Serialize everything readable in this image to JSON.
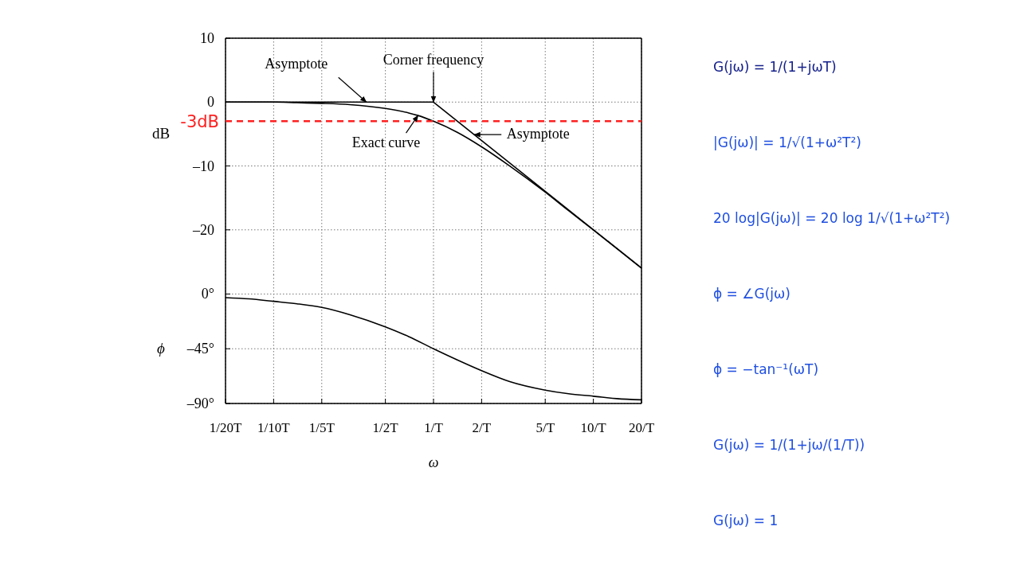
{
  "chart_data": [
    {
      "type": "line",
      "ylabel": "dB",
      "log": "x",
      "tick_labels": "y",
      "xlim": [
        0.05,
        20
      ],
      "xticks": [
        0.05,
        0.1,
        0.2,
        0.5,
        1,
        2,
        5,
        10,
        20
      ],
      "ylim": [
        -27,
        10
      ],
      "yticks": [
        10,
        0,
        {
          "value": -10,
          "label": "–10"
        },
        {
          "value": -20,
          "label": "–20"
        }
      ],
      "grid": true,
      "series": [
        {
          "color": "#000000",
          "x": [
            0.05,
            1,
            20
          ],
          "values": [
            0,
            0,
            -26
          ]
        },
        {
          "color": "#000000",
          "x": [
            0.05,
            0.1,
            0.14,
            0.2,
            0.3,
            0.5,
            0.7,
            0.8,
            1,
            1.4,
            2,
            3,
            5,
            7,
            10,
            14,
            20
          ],
          "values": [
            0,
            0,
            -0.1,
            -0.2,
            -0.4,
            -1,
            -1.7,
            -2.1,
            -3,
            -4.7,
            -7,
            -10,
            -14.1,
            -17,
            -20,
            -22.9,
            -26
          ]
        }
      ],
      "ref_lines": [
        {
          "axis": "y",
          "value": -3,
          "label": "-3dB",
          "color": "#ff2020",
          "line_style": "dashed"
        }
      ],
      "annotations": [
        {
          "text": "Asymptote",
          "x": 0.38,
          "y": 0
        },
        {
          "text": "Corner frequency",
          "x": 1,
          "y": 0
        },
        {
          "text": "Asymptote",
          "x": 1.8,
          "y": -5.1
        },
        {
          "text": "Exact curve",
          "x": 0.8,
          "y": -2.1
        },
        "G(jω) = 1/(1+jωT)",
        "|G(jω)| = 1/√(1+ω²T²)",
        "20 log|G(jω)| = 20 log 1/√(1+ω²T²)",
        "ϕ = ∠G(jω)",
        "ϕ = −tan⁻¹(ωT)",
        "G(jω) = 1/(1+jω/(1/T))",
        "G(jω) = 1"
      ]
    },
    {
      "type": "line",
      "xlabel": "ω",
      "ylabel": "ϕ",
      "log": "x",
      "xlim": [
        0.05,
        20
      ],
      "xticks": [
        {
          "value": 0.05,
          "label": "1/20T"
        },
        {
          "value": 0.1,
          "label": "1/10T"
        },
        {
          "value": 0.2,
          "label": "1/5T"
        },
        {
          "value": 0.5,
          "label": "1/2T"
        },
        {
          "value": 1,
          "label": "1/T"
        },
        {
          "value": 2,
          "label": "2/T"
        },
        {
          "value": 5,
          "label": "5/T"
        },
        {
          "value": 10,
          "label": "10/T"
        },
        {
          "value": 20,
          "label": "20/T"
        }
      ],
      "ylim": [
        -90,
        16
      ],
      "yticks": [
        {
          "value": 0,
          "label": "0°"
        },
        {
          "value": -45,
          "label": "–45°"
        },
        {
          "value": -90,
          "label": "–90°"
        }
      ],
      "grid": true,
      "series": [
        {
          "color": "#000000",
          "x": [
            0.05,
            0.07,
            0.1,
            0.14,
            0.2,
            0.3,
            0.5,
            0.7,
            1,
            1.4,
            2,
            3,
            5,
            7,
            10,
            14,
            20
          ],
          "values": [
            -3,
            -4,
            -6,
            -8,
            -11,
            -17,
            -27,
            -35,
            -45,
            -54,
            -63,
            -72,
            -79,
            -82,
            -84,
            -86,
            -87
          ]
        }
      ]
    }
  ]
}
